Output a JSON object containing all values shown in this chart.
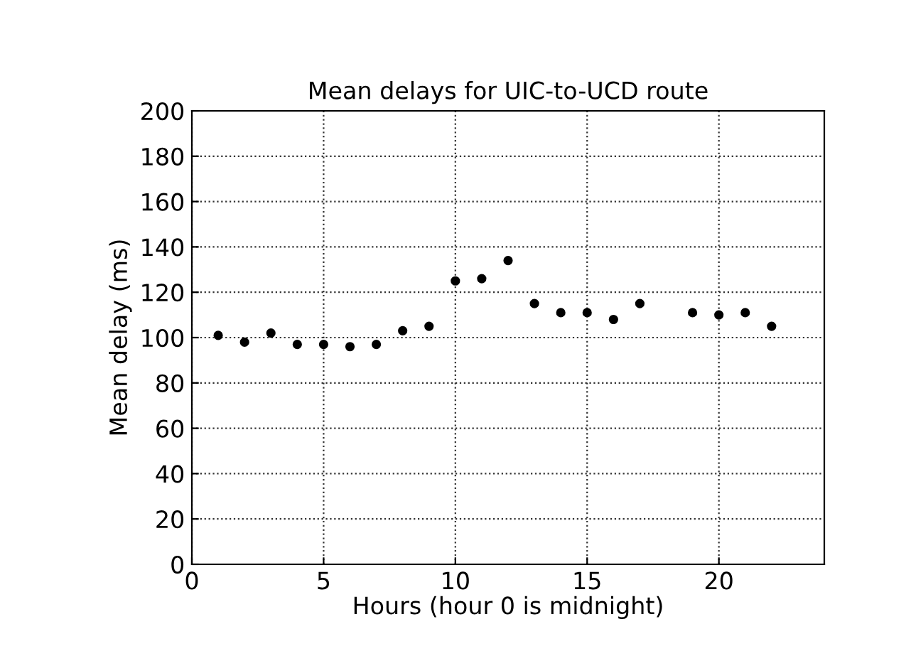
{
  "chart_data": {
    "type": "scatter",
    "title": "Mean delays for UIC-to-UCD route",
    "xlabel": "Hours (hour 0 is midnight)",
    "ylabel": "Mean delay (ms)",
    "x": [
      1,
      2,
      3,
      4,
      5,
      6,
      7,
      8,
      9,
      10,
      11,
      12,
      13,
      14,
      15,
      16,
      17,
      19,
      20,
      21,
      22
    ],
    "series": [
      {
        "color": "#000000",
        "values": [
          101,
          98,
          102,
          97,
          97,
          96,
          97,
          103,
          105,
          125,
          126,
          134,
          115,
          111,
          111,
          108,
          115,
          111,
          110,
          111,
          105
        ]
      }
    ],
    "xlim": [
      0,
      24
    ],
    "xticks": [
      0,
      5,
      10,
      15,
      20
    ],
    "ylim": [
      0,
      200
    ],
    "yticks": [
      0,
      20,
      40,
      60,
      80,
      100,
      120,
      140,
      160,
      180,
      200
    ],
    "grid": true,
    "marker": "circle"
  }
}
